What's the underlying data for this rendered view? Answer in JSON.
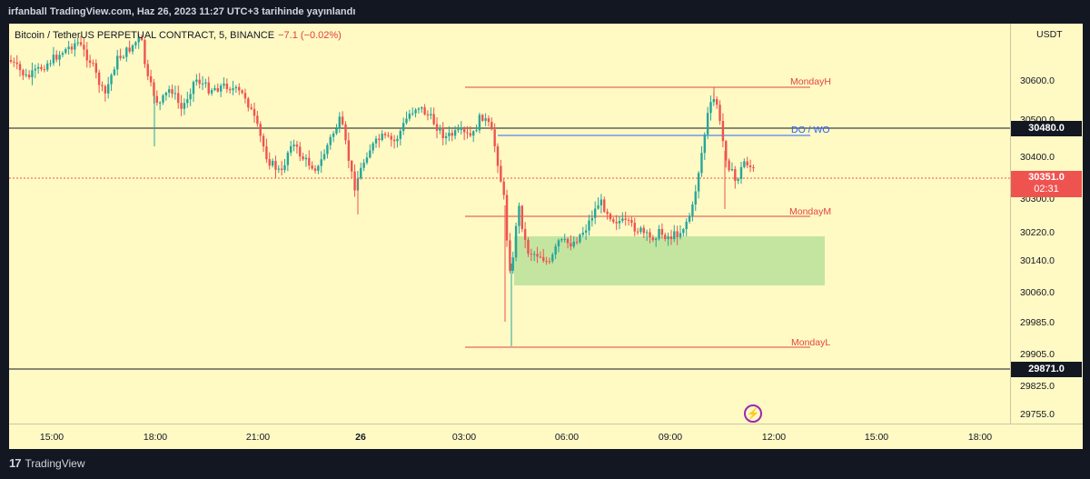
{
  "header": {
    "publish_text": "irfanball TradingView.com, Haz 26, 2023 11:27 UTC+3 tarihinde yayınlandı"
  },
  "legend": {
    "symbol_text": "Bitcoin / TetherUS PERPETUAL CONTRACT, 5, BINANCE",
    "change_text": "−7.1 (−0.02%)"
  },
  "colors": {
    "chart_bg": "#fff9c4",
    "up": "#26a69a",
    "down": "#ef5350",
    "level_red": "#e04545",
    "level_blue": "#2962ff",
    "zone_green": "#b9e29a",
    "current_price": "#ef5350",
    "flash": "#9c27b0"
  },
  "price_axis": {
    "currency": "USDT",
    "ticks": [
      "30600.0",
      "30500.0",
      "30400.0",
      "30300.0",
      "30220.0",
      "30140.0",
      "30060.0",
      "29985.0",
      "29905.0",
      "29825.0",
      "29755.0"
    ],
    "badge_high": "30480.0",
    "badge_current": "30351.0",
    "badge_countdown": "02:31",
    "badge_low": "29871.0"
  },
  "time_axis": {
    "ticks": [
      "15:00",
      "18:00",
      "21:00",
      "26",
      "03:00",
      "06:00",
      "09:00",
      "12:00",
      "15:00",
      "18:00"
    ]
  },
  "levels": {
    "monday_high": "MondayH",
    "do_wo": "DO / WO",
    "monday_mid": "MondayM",
    "monday_low": "MondayL"
  },
  "footer": {
    "brand": "TradingView",
    "logo_mark": "17",
    "flash_icon": "flash-icon"
  }
}
